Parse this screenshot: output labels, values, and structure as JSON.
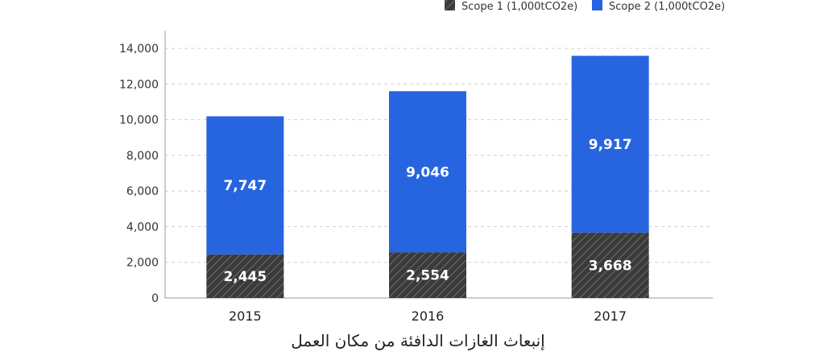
{
  "chart_data": {
    "type": "bar",
    "stacked": true,
    "title": "إنبعاث الغازات الدافئة من مكان العمل",
    "categories": [
      "2015",
      "2016",
      "2017"
    ],
    "series": [
      {
        "name": "Scope 1 (1,000tCO2e)",
        "values": [
          2445,
          2554,
          3668
        ],
        "value_labels": [
          "2,445",
          "2,554",
          "3,668"
        ],
        "color": "#3a3a3a",
        "pattern": "diagonal-hatch"
      },
      {
        "name": "Scope 2 (1,000tCO2e)",
        "values": [
          7747,
          9046,
          9917
        ],
        "value_labels": [
          "7,747",
          "9,046",
          "9,917"
        ],
        "color": "#2764e0"
      }
    ],
    "ylim": [
      0,
      15000
    ],
    "yticks": [
      0,
      2000,
      4000,
      6000,
      8000,
      10000,
      12000,
      14000
    ],
    "ytick_labels": [
      "0",
      "2,000",
      "4,000",
      "6,000",
      "8,000",
      "10,000",
      "12,000",
      "14,000"
    ],
    "xlabel": "",
    "ylabel": "",
    "grid": "horizontal-dashed",
    "legend_position": "top-right"
  }
}
